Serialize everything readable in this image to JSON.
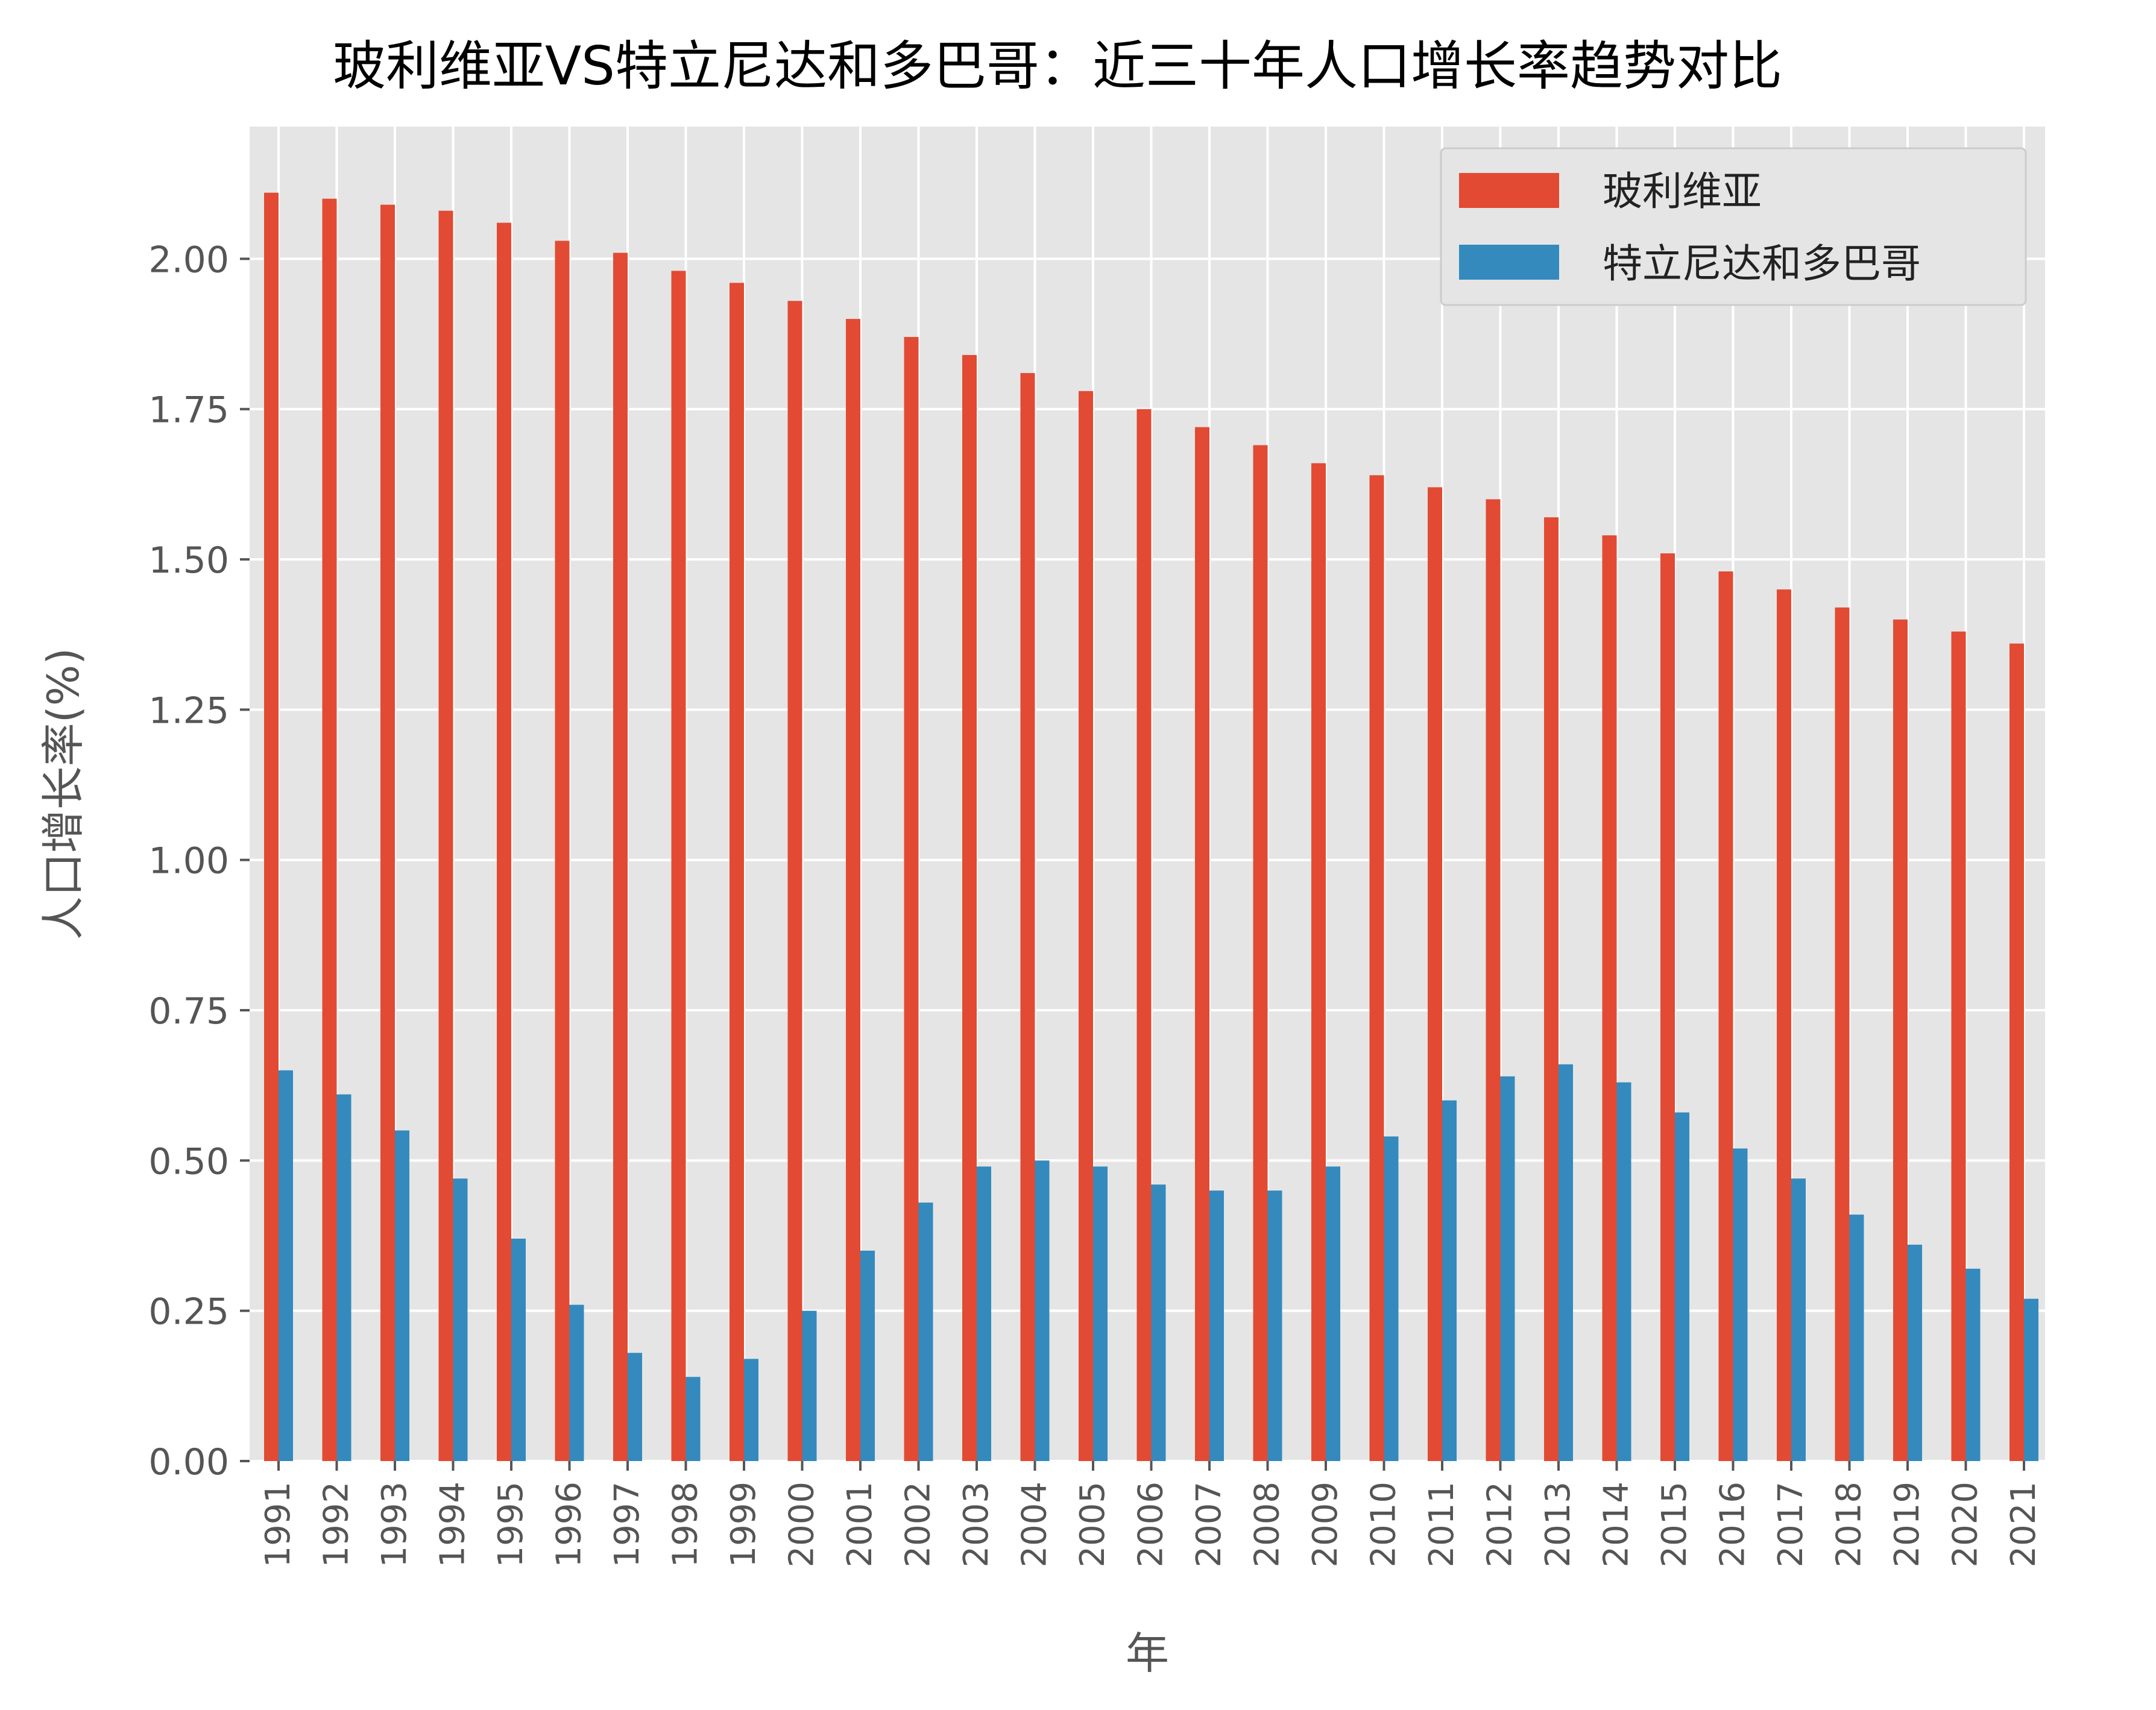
{
  "chart_data": {
    "type": "bar",
    "title": "玻利维亚VS特立尼达和多巴哥：近三十年人口增长率趋势对比",
    "xlabel": "年",
    "ylabel": "人口增长率(%)",
    "ylim": [
      0,
      2.22
    ],
    "yticks": [
      "0.00",
      "0.25",
      "0.50",
      "0.75",
      "1.00",
      "1.25",
      "1.50",
      "1.75",
      "2.00"
    ],
    "ytick_values": [
      0,
      0.25,
      0.5,
      0.75,
      1.0,
      1.25,
      1.5,
      1.75,
      2.0
    ],
    "grid": true,
    "legend_position": "top-right",
    "categories": [
      "1991",
      "1992",
      "1993",
      "1994",
      "1995",
      "1996",
      "1997",
      "1998",
      "1999",
      "2000",
      "2001",
      "2002",
      "2003",
      "2004",
      "2005",
      "2006",
      "2007",
      "2008",
      "2009",
      "2010",
      "2011",
      "2012",
      "2013",
      "2014",
      "2015",
      "2016",
      "2017",
      "2018",
      "2019",
      "2020",
      "2021"
    ],
    "series": [
      {
        "name": "玻利维亚",
        "color": "#E24A33",
        "values": [
          2.11,
          2.1,
          2.09,
          2.08,
          2.06,
          2.03,
          2.01,
          1.98,
          1.96,
          1.93,
          1.9,
          1.87,
          1.84,
          1.81,
          1.78,
          1.75,
          1.72,
          1.69,
          1.66,
          1.64,
          1.62,
          1.6,
          1.57,
          1.54,
          1.51,
          1.48,
          1.45,
          1.42,
          1.4,
          1.38,
          1.36
        ]
      },
      {
        "name": "特立尼达和多巴哥",
        "color": "#348ABD",
        "values": [
          0.65,
          0.61,
          0.55,
          0.47,
          0.37,
          0.26,
          0.18,
          0.14,
          0.17,
          0.25,
          0.35,
          0.43,
          0.49,
          0.5,
          0.49,
          0.46,
          0.45,
          0.45,
          0.49,
          0.54,
          0.6,
          0.64,
          0.66,
          0.63,
          0.58,
          0.52,
          0.47,
          0.41,
          0.36,
          0.32,
          0.27
        ]
      }
    ]
  }
}
